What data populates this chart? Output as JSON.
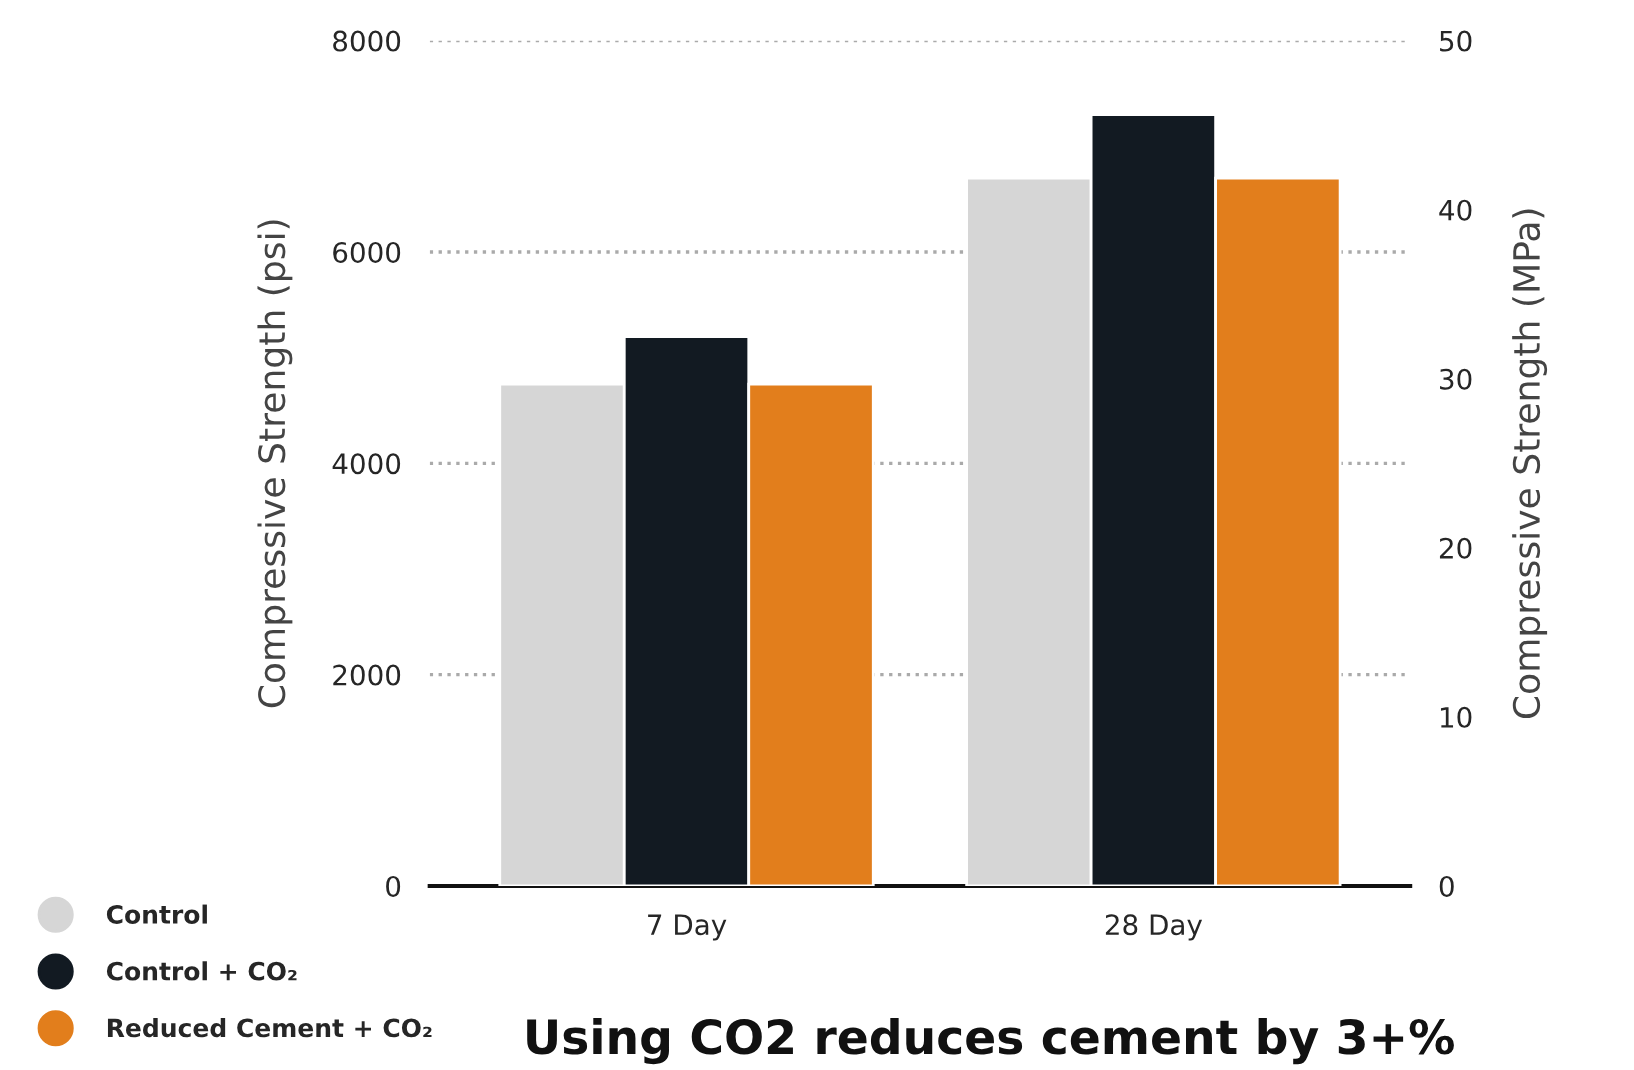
{
  "chart_data": {
    "type": "bar",
    "ylabel": "Compressive Strength (psi)",
    "y2label": "Compressive Strength (MPa)",
    "categories": [
      "7 Day",
      "28 Day"
    ],
    "series": [
      {
        "name": "Control",
        "color": "#d6d6d6",
        "values": [
          4750,
          6700
        ]
      },
      {
        "name": "Control + CO₂",
        "color": "#121a22",
        "values": [
          5200,
          7300
        ]
      },
      {
        "name": "Reduced Cement + CO₂",
        "color": "#e27e1c",
        "values": [
          4750,
          6700
        ]
      }
    ],
    "ylim": [
      0,
      8000
    ],
    "yticks": [
      0,
      2000,
      4000,
      6000,
      8000
    ],
    "y2lim": [
      0,
      50
    ],
    "y2ticks": [
      0,
      10,
      20,
      30,
      40,
      50
    ],
    "grid": "y",
    "legend": "bottom left",
    "annotations": [
      "Using CO2 reduces cement by 3+%"
    ]
  }
}
